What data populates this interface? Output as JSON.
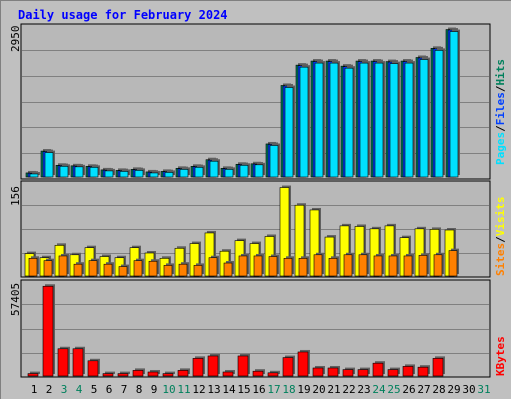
{
  "title": "Daily usage for February 2024",
  "colors": {
    "hits": "#00805C",
    "files": "#0040FF",
    "pages": "#00E0FF",
    "visits": "#FFFF00",
    "sites": "#FF8000",
    "kbytes": "#FF0000",
    "title": "#0000FF",
    "weekend": "#00805C"
  },
  "chart_data": [
    {
      "type": "bar",
      "panel": "top",
      "ymax_label": "2950",
      "ylim": [
        0,
        2950
      ],
      "legend": {
        "pages": "Pages",
        "files": "Files",
        "hits": "Hits",
        "sep": "/"
      },
      "series": [
        {
          "name": "Hits",
          "values": [
            80,
            510,
            230,
            220,
            210,
            140,
            130,
            150,
            100,
            110,
            170,
            210,
            340,
            170,
            250,
            260,
            650,
            1800,
            2200,
            2280,
            2280,
            2180,
            2280,
            2280,
            2270,
            2280,
            2350,
            2530,
            2900
          ]
        },
        {
          "name": "Files",
          "values": [
            75,
            500,
            225,
            215,
            205,
            135,
            125,
            145,
            95,
            105,
            165,
            205,
            330,
            165,
            245,
            255,
            640,
            1790,
            2190,
            2270,
            2270,
            2170,
            2270,
            2270,
            2260,
            2270,
            2340,
            2520,
            2890
          ]
        },
        {
          "name": "Pages",
          "values": [
            60,
            480,
            210,
            200,
            190,
            120,
            110,
            130,
            80,
            90,
            150,
            190,
            310,
            150,
            230,
            240,
            620,
            1760,
            2160,
            2240,
            2240,
            2140,
            2240,
            2240,
            2230,
            2240,
            2310,
            2490,
            2860
          ]
        }
      ]
    },
    {
      "type": "bar",
      "panel": "middle",
      "ymax_label": "156",
      "ylim": [
        0,
        156
      ],
      "legend": {
        "sites": "Sites",
        "visits": "Visits",
        "sep": "/"
      },
      "series": [
        {
          "name": "Visits",
          "values": [
            38,
            31,
            52,
            36,
            48,
            33,
            31,
            48,
            39,
            30,
            47,
            55,
            73,
            42,
            60,
            55,
            67,
            150,
            120,
            112,
            66,
            85,
            84,
            80,
            85,
            65,
            80,
            79,
            78
          ]
        },
        {
          "name": "Sites",
          "values": [
            30,
            26,
            34,
            20,
            26,
            20,
            16,
            26,
            25,
            18,
            20,
            18,
            31,
            22,
            34,
            34,
            33,
            30,
            30,
            36,
            30,
            36,
            36,
            34,
            34,
            34,
            35,
            36,
            43
          ]
        }
      ]
    },
    {
      "type": "bar",
      "panel": "bottom",
      "ymax_label": "57405",
      "ylim": [
        0,
        57405
      ],
      "legend": {
        "kbytes": "KBytes"
      },
      "series": [
        {
          "name": "KBytes",
          "values": [
            1500,
            56000,
            17000,
            17000,
            9500,
            1500,
            1500,
            3500,
            2500,
            1500,
            3500,
            11000,
            12500,
            2500,
            12500,
            3000,
            2000,
            11500,
            15000,
            5000,
            5000,
            4000,
            4000,
            8000,
            4000,
            6000,
            5500,
            11000,
            0
          ]
        }
      ]
    }
  ],
  "x_labels": [
    "1",
    "2",
    "3",
    "4",
    "5",
    "6",
    "7",
    "8",
    "9",
    "10",
    "11",
    "12",
    "13",
    "14",
    "15",
    "16",
    "17",
    "18",
    "19",
    "20",
    "21",
    "22",
    "23",
    "24",
    "25",
    "26",
    "27",
    "28",
    "29",
    "30",
    "31"
  ],
  "weekend_days": [
    3,
    4,
    10,
    11,
    17,
    18,
    24,
    25,
    31
  ]
}
